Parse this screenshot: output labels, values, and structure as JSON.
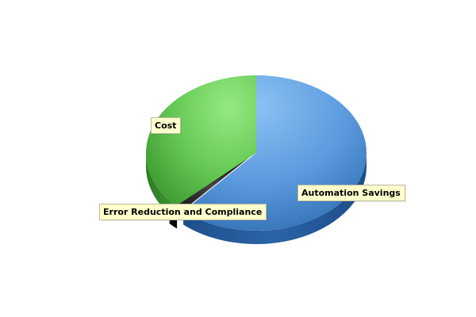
{
  "chart_data": {
    "type": "pie",
    "style": "3d",
    "slices": [
      {
        "label": "Automation Savings",
        "value": 61.5,
        "color": "#4a8ad0"
      },
      {
        "label": "Error Reduction and Compliance",
        "value": 1.5,
        "color": "#1a1a1a"
      },
      {
        "label": "Cost",
        "value": 37.0,
        "color": "#5cc24a"
      }
    ],
    "legend": "none",
    "data_labels": "callout"
  }
}
